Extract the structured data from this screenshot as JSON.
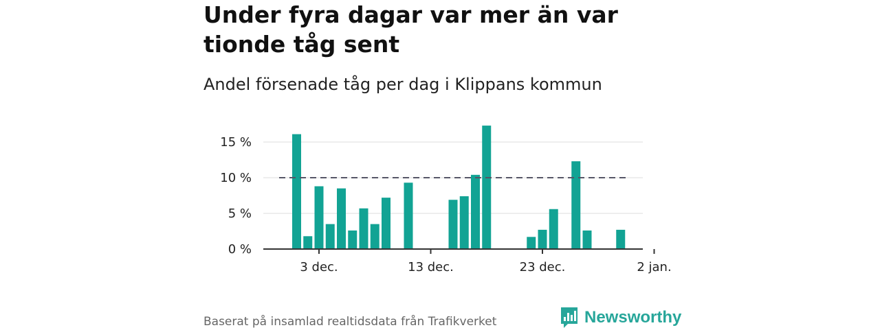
{
  "title": "Under fyra dagar var mer än var tionde tåg sent",
  "subtitle": "Andel försenade tåg per dag i Klippans kommun",
  "footer": "Baserat på insamlad realtidsdata från Trafikverket",
  "brand": {
    "name": "Newsworthy",
    "icon": "newsworthy-logo-icon",
    "color": "#27a69a"
  },
  "colors": {
    "bar": "#12a394",
    "reference_line": "#555566",
    "grid": "#dddddd",
    "axis": "#333333"
  },
  "chart_data": {
    "type": "bar",
    "x_unit": "date",
    "x": [
      "2023-12-01",
      "2023-12-02",
      "2023-12-03",
      "2023-12-04",
      "2023-12-05",
      "2023-12-06",
      "2023-12-07",
      "2023-12-08",
      "2023-12-09",
      "2023-12-10",
      "2023-12-11",
      "2023-12-12",
      "2023-12-13",
      "2023-12-14",
      "2023-12-15",
      "2023-12-16",
      "2023-12-17",
      "2023-12-18",
      "2023-12-19",
      "2023-12-20",
      "2023-12-21",
      "2023-12-22",
      "2023-12-23",
      "2023-12-24",
      "2023-12-25",
      "2023-12-26",
      "2023-12-27",
      "2023-12-28",
      "2023-12-29",
      "2023-12-30",
      "2023-12-31",
      "2024-01-01"
    ],
    "values": [
      16.1,
      1.8,
      8.8,
      3.5,
      8.5,
      2.6,
      5.7,
      3.5,
      7.2,
      0,
      9.3,
      0,
      0,
      0,
      6.9,
      7.4,
      10.4,
      17.3,
      0,
      0,
      0,
      1.7,
      2.7,
      5.6,
      0,
      12.3,
      2.6,
      0,
      0,
      2.7,
      0,
      0
    ],
    "x_ticks": [
      "3 dec.",
      "13 dec.",
      "23 dec.",
      "2 jan."
    ],
    "y_ticks": [
      "0 %",
      "5 %",
      "10 %",
      "15 %"
    ],
    "y_tick_values": [
      0,
      5,
      10,
      15
    ],
    "ylim": [
      0,
      17.5
    ],
    "reference_line": 10,
    "grid": true,
    "xlabel": "",
    "ylabel": ""
  }
}
